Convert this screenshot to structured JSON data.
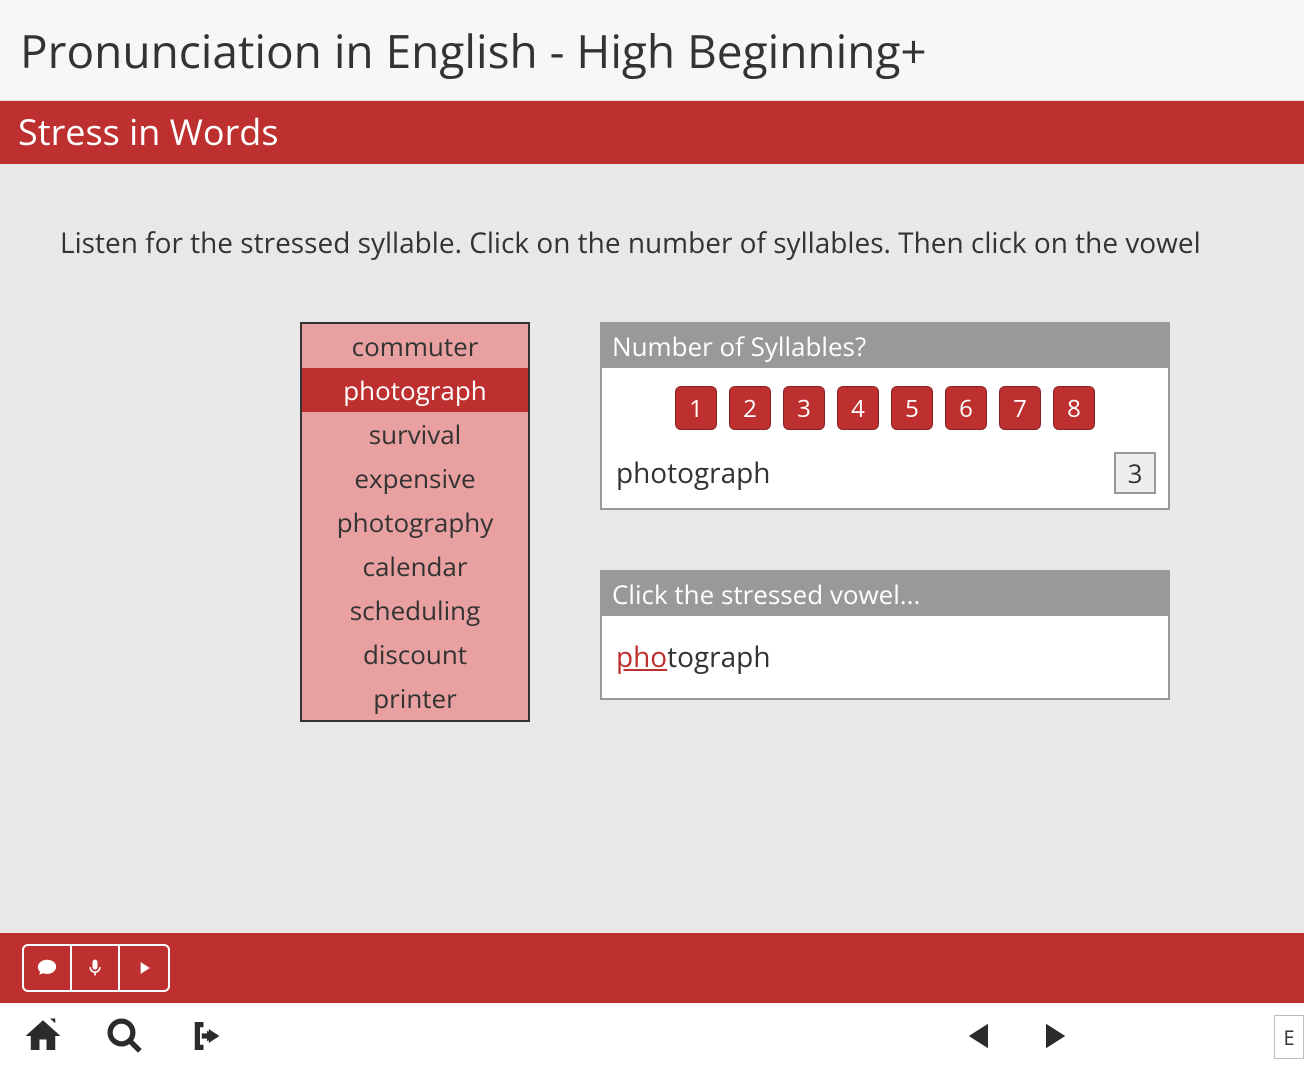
{
  "header": {
    "title": "Pronunciation in English - High Beginning+"
  },
  "subheader": {
    "title": "Stress in Words"
  },
  "instructions": "Listen for the stressed syllable. Click on the number of syllables. Then click on the vowel",
  "wordlist": {
    "items": [
      {
        "label": "commuter",
        "selected": false
      },
      {
        "label": "photograph",
        "selected": true
      },
      {
        "label": "survival",
        "selected": false
      },
      {
        "label": "expensive",
        "selected": false
      },
      {
        "label": "photography",
        "selected": false
      },
      {
        "label": "calendar",
        "selected": false
      },
      {
        "label": "scheduling",
        "selected": false
      },
      {
        "label": "discount",
        "selected": false
      },
      {
        "label": "printer",
        "selected": false
      }
    ]
  },
  "syllable_panel": {
    "header": "Number of Syllables?",
    "buttons": [
      "1",
      "2",
      "3",
      "4",
      "5",
      "6",
      "7",
      "8"
    ],
    "word": "photograph",
    "count": "3"
  },
  "stress_panel": {
    "header": "Click the stressed vowel...",
    "stressed_part": "pho",
    "rest_part": "tograph"
  },
  "bottom": {
    "e_label": "E"
  },
  "colors": {
    "primary_red": "#be3030",
    "light_red": "#e8a0a0",
    "gray_header": "#999999",
    "page_bg": "#e8e8e8",
    "header_bg": "#f7f7f7",
    "text": "#333333",
    "white": "#ffffff"
  }
}
